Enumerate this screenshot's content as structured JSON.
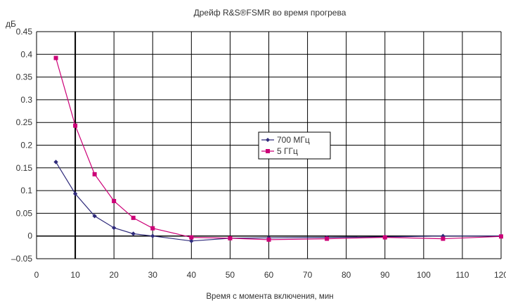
{
  "chart_data": {
    "type": "line",
    "title": "Дрейф R&S®FSMR во время прогрева",
    "xlabel": "Время с момента включения, мин",
    "ylabel": "дБ",
    "xlim": [
      0,
      120
    ],
    "ylim": [
      -0.05,
      0.45
    ],
    "xticks": [
      0,
      10,
      20,
      30,
      40,
      50,
      60,
      70,
      80,
      90,
      100,
      110,
      120
    ],
    "yticks": [
      "0.45",
      "0.4",
      "0.35",
      "0.3",
      "0.25",
      "0.2",
      "0.15",
      "0.1",
      "0.05",
      "0",
      "–0.05"
    ],
    "grid": true,
    "legend_position": "center-right",
    "series": [
      {
        "name": "700 МГц",
        "color": "#2e2a7a",
        "marker": "diamond",
        "x": [
          5,
          10,
          15,
          20,
          25,
          30,
          40,
          50,
          60,
          75,
          90,
          105,
          120
        ],
        "values": [
          0.163,
          0.093,
          0.044,
          0.018,
          0.005,
          0.0,
          -0.011,
          -0.005,
          -0.004,
          -0.003,
          -0.002,
          0.0,
          0.0
        ]
      },
      {
        "name": "5 ГГц",
        "color": "#cc0077",
        "marker": "square",
        "x": [
          5,
          10,
          15,
          20,
          25,
          30,
          40,
          50,
          60,
          75,
          90,
          105,
          120
        ],
        "values": [
          0.392,
          0.243,
          0.136,
          0.077,
          0.04,
          0.017,
          -0.003,
          -0.005,
          -0.008,
          -0.006,
          -0.003,
          -0.006,
          -0.001
        ]
      }
    ]
  }
}
